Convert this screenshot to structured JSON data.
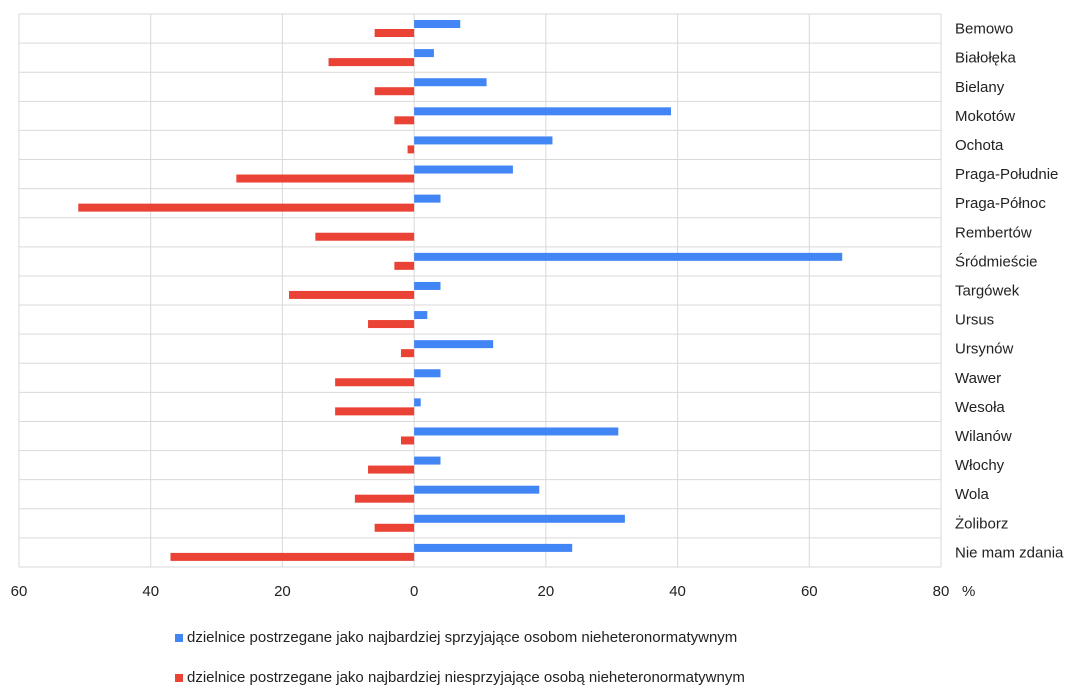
{
  "chart_data": {
    "type": "bar",
    "orientation": "horizontal",
    "categories": [
      "Bemowo",
      "Białołęka",
      "Bielany",
      "Mokotów",
      "Ochota",
      "Praga-Południe",
      "Praga-Północ",
      "Rembertów",
      "Śródmieście",
      "Targówek",
      "Ursus",
      "Ursynów",
      "Wawer",
      "Wesoła",
      "Wilanów",
      "Włochy",
      "Wola",
      "Żoliborz",
      "Nie mam zdania"
    ],
    "series": [
      {
        "name": "dzielnice postrzegane jako najbardziej sprzyjające osobom nieheteronormatywnym",
        "color": "#4285f4",
        "values": [
          7,
          3,
          11,
          39,
          21,
          15,
          4,
          0,
          65,
          4,
          2,
          12,
          4,
          1,
          31,
          4,
          19,
          32,
          24
        ]
      },
      {
        "name": "dzielnice postrzegane jako najbardziej niesprzyjające osobą nieheteronormatywnym",
        "color": "#ea4335",
        "values": [
          6,
          13,
          6,
          3,
          1,
          27,
          51,
          15,
          3,
          19,
          7,
          2,
          12,
          12,
          2,
          7,
          9,
          6,
          37
        ]
      }
    ],
    "x_ticks": [
      "60",
      "40",
      "20",
      "0",
      "20",
      "40",
      "60",
      "80"
    ],
    "xlim": [
      -60,
      80
    ],
    "x_unit": "%",
    "grid": true,
    "legend_position": "bottom"
  }
}
